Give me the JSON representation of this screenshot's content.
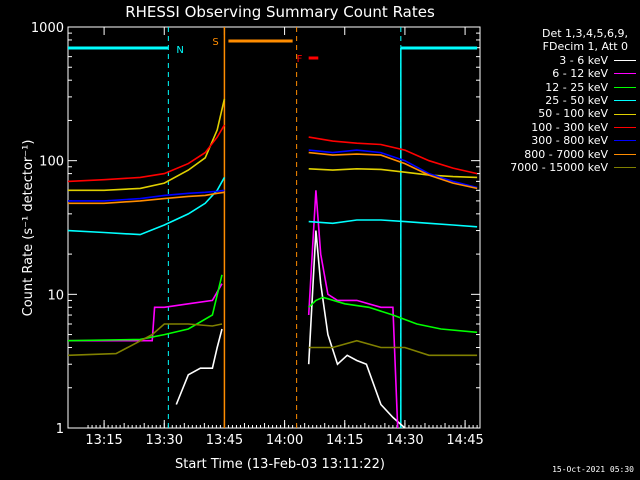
{
  "chart_data": {
    "type": "line",
    "title": "RHESSI Observing Summary Count Rates",
    "xlabel": "Start Time (13-Feb-03 13:11:22)",
    "ylabel": "Count Rate (s⁻¹ detector⁻¹)",
    "y_scale": "log",
    "ylim": [
      1,
      1000
    ],
    "x_range_minutes": [
      13.1,
      14.812
    ],
    "x_ticks": [
      "13:15",
      "13:30",
      "13:45",
      "14:00",
      "14:15",
      "14:30",
      "14:45"
    ],
    "y_ticks": [
      "1",
      "10",
      "100",
      "1000"
    ],
    "legend_header": [
      "Det 1,3,4,5,6,9,",
      "FDecim 1, Att 0"
    ],
    "legend_position": "right",
    "markers": [
      {
        "label": "N",
        "kind": "night",
        "color": "#00ffff",
        "x": [
          13.1,
          13.517
        ],
        "x_end_line": 13.517
      },
      {
        "label": "N",
        "kind": "night",
        "color": "#00ffff",
        "x": [
          14.483,
          14.8
        ],
        "x_start_line": 14.483
      },
      {
        "label": "S",
        "kind": "saa",
        "color": "#ff8c00",
        "x": [
          13.75,
          14.05
        ]
      },
      {
        "label": "F",
        "kind": "flare",
        "color": "#ff0000",
        "x": [
          14.1,
          14.14
        ]
      }
    ],
    "data_gap": [
      13.75,
      14.1
    ],
    "series": [
      {
        "name": "3 - 6 keV",
        "color": "#ffffff",
        "x": [
          13.1,
          13.45,
          13.5,
          13.55,
          13.6,
          13.65,
          13.7,
          13.72,
          13.74,
          14.1,
          14.13,
          14.15,
          14.18,
          14.22,
          14.26,
          14.3,
          14.34,
          14.4,
          14.45,
          14.5
        ],
        "y": [
          null,
          null,
          null,
          1.5,
          2.5,
          2.8,
          2.8,
          4.0,
          5.5,
          3.0,
          30,
          12,
          5.0,
          3.0,
          3.5,
          3.2,
          3.0,
          1.5,
          1.2,
          1.0
        ]
      },
      {
        "name": "6 - 12 keV",
        "color": "#ff00ff",
        "x": [
          13.1,
          13.45,
          13.46,
          13.5,
          13.6,
          13.7,
          13.74,
          14.1,
          14.13,
          14.15,
          14.18,
          14.22,
          14.3,
          14.4,
          14.45,
          14.47
        ],
        "y": [
          4.5,
          4.5,
          8.0,
          8.0,
          8.5,
          9.0,
          12,
          7.0,
          60,
          20,
          10,
          9.0,
          9.0,
          8.0,
          8.0,
          1.0
        ]
      },
      {
        "name": "12 - 25 keV",
        "color": "#00ff00",
        "x": [
          13.1,
          13.4,
          13.5,
          13.6,
          13.7,
          13.74,
          14.1,
          14.13,
          14.16,
          14.25,
          14.35,
          14.45,
          14.55,
          14.65,
          14.8
        ],
        "y": [
          4.5,
          4.6,
          5.0,
          5.5,
          7.0,
          14,
          8.0,
          9.0,
          9.5,
          8.5,
          8.0,
          7.0,
          6.0,
          5.5,
          5.2
        ]
      },
      {
        "name": "25 - 50 keV",
        "color": "#00ffff",
        "x": [
          13.1,
          13.25,
          13.4,
          13.5,
          13.6,
          13.67,
          13.72,
          13.75,
          14.1,
          14.2,
          14.3,
          14.4,
          14.5,
          14.6,
          14.7,
          14.8
        ],
        "y": [
          30,
          29,
          28,
          33,
          40,
          48,
          60,
          75,
          35,
          34,
          36,
          36,
          35,
          34,
          33,
          32
        ]
      },
      {
        "name": "50 - 100 keV",
        "color": "#e0d000",
        "x": [
          13.1,
          13.25,
          13.4,
          13.5,
          13.6,
          13.67,
          13.72,
          13.75,
          14.1,
          14.2,
          14.3,
          14.4,
          14.5,
          14.6,
          14.7,
          14.8
        ],
        "y": [
          60,
          60,
          62,
          68,
          85,
          105,
          170,
          290,
          87,
          85,
          87,
          86,
          82,
          78,
          76,
          75
        ]
      },
      {
        "name": "100 - 300 keV",
        "color": "#ff0000",
        "x": [
          13.1,
          13.25,
          13.4,
          13.5,
          13.6,
          13.67,
          13.72,
          13.75,
          14.1,
          14.2,
          14.3,
          14.4,
          14.5,
          14.6,
          14.7,
          14.8
        ],
        "y": [
          70,
          72,
          75,
          80,
          95,
          115,
          150,
          185,
          150,
          140,
          135,
          132,
          120,
          100,
          88,
          80
        ]
      },
      {
        "name": "300 - 800 keV",
        "color": "#0000ff",
        "x": [
          13.1,
          13.25,
          13.4,
          13.5,
          13.6,
          13.67,
          13.72,
          13.75,
          14.1,
          14.2,
          14.3,
          14.4,
          14.5,
          14.6,
          14.7,
          14.8
        ],
        "y": [
          50,
          50,
          52,
          55,
          57,
          58,
          59,
          60,
          120,
          115,
          120,
          115,
          100,
          80,
          70,
          63
        ]
      },
      {
        "name": "800 - 7000 keV",
        "color": "#ff8c00",
        "x": [
          13.1,
          13.25,
          13.4,
          13.5,
          13.6,
          13.67,
          13.72,
          13.75,
          14.1,
          14.2,
          14.3,
          14.4,
          14.5,
          14.6,
          14.7,
          14.8
        ],
        "y": [
          48,
          48,
          50,
          52,
          54,
          55,
          57,
          58,
          115,
          110,
          112,
          110,
          95,
          78,
          68,
          62
        ]
      },
      {
        "name": "7000 - 15000 keV",
        "color": "#808000",
        "x": [
          13.1,
          13.3,
          13.45,
          13.5,
          13.6,
          13.7,
          13.74,
          14.1,
          14.2,
          14.3,
          14.4,
          14.5,
          14.6,
          14.7,
          14.8
        ],
        "y": [
          3.5,
          3.6,
          5.0,
          6.0,
          6.0,
          5.8,
          6.0,
          4.0,
          4.0,
          4.5,
          4.0,
          4.0,
          3.5,
          3.5,
          3.5
        ]
      }
    ]
  },
  "footer": {
    "timestamp": "15-Oct-2021 05:30"
  }
}
